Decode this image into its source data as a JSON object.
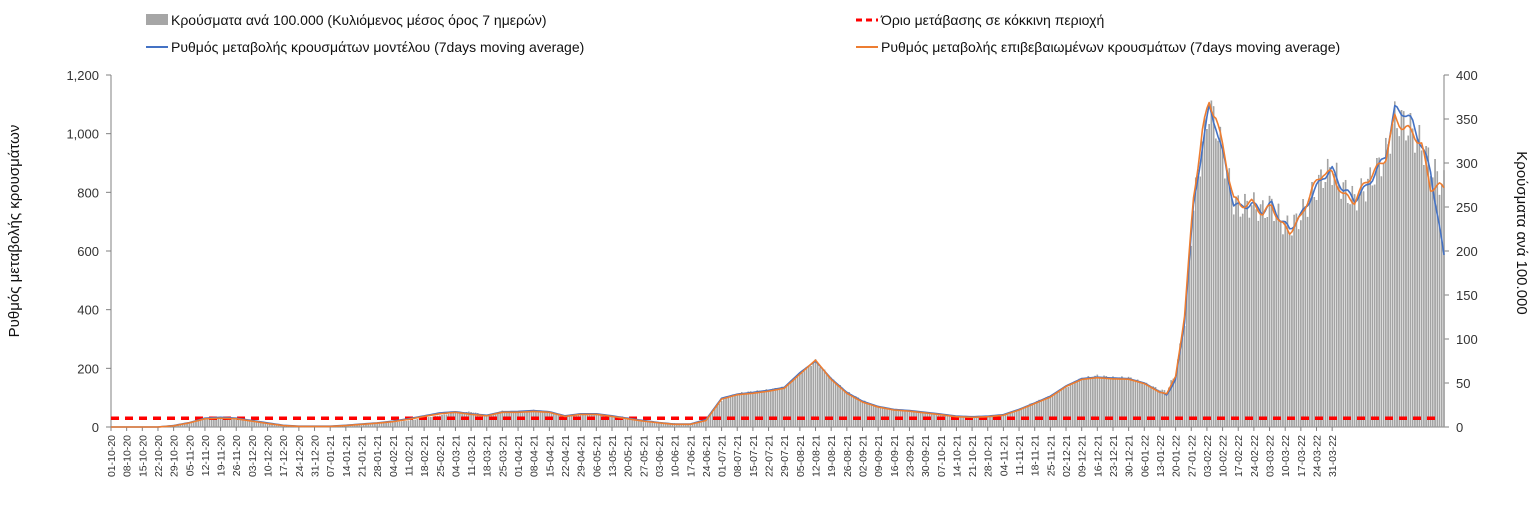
{
  "chart_data": {
    "type": "bar+line",
    "legend": {
      "bars": "Κρούσματα ανά 100.000 (Κυλιόμενος μέσος όρος 7 ημερών)",
      "threshold": "Όριο μετάβασης σε κόκκινη περιοχή",
      "model": "Ρυθμός μεταβολής κρουσμάτων μοντέλου (7days moving average)",
      "confirmed": "Ρυθμός μεταβολής επιβεβαιωμένων κρουσμάτων (7days moving average)"
    },
    "ylabel_left": "Ρυθμός μεταβολής κρουσμάτων",
    "ylabel_right": "Κρούσματα ανά 100.000",
    "ylim_left": [
      0,
      1200
    ],
    "ylim_right": [
      0,
      400
    ],
    "yticks_left": [
      "0",
      "200",
      "400",
      "600",
      "800",
      "1,000",
      "1,200"
    ],
    "yticks_right": [
      "0",
      "50",
      "100",
      "150",
      "200",
      "250",
      "300",
      "350",
      "400"
    ],
    "x_ticks": [
      "01-10-20",
      "08-10-20",
      "15-10-20",
      "22-10-20",
      "29-10-20",
      "05-11-20",
      "12-11-20",
      "19-11-20",
      "26-11-20",
      "03-12-20",
      "10-12-20",
      "17-12-20",
      "24-12-20",
      "31-12-20",
      "07-01-21",
      "14-01-21",
      "21-01-21",
      "28-01-21",
      "04-02-21",
      "11-02-21",
      "18-02-21",
      "25-02-21",
      "04-03-21",
      "11-03-21",
      "18-03-21",
      "25-03-21",
      "01-04-21",
      "08-04-21",
      "15-04-21",
      "22-04-21",
      "29-04-21",
      "06-05-21",
      "13-05-21",
      "20-05-21",
      "27-05-21",
      "03-06-21",
      "10-06-21",
      "17-06-21",
      "24-06-21",
      "01-07-21",
      "08-07-21",
      "15-07-21",
      "22-07-21",
      "29-07-21",
      "05-08-21",
      "12-08-21",
      "19-08-21",
      "26-08-21",
      "02-09-21",
      "09-09-21",
      "16-09-21",
      "23-09-21",
      "30-09-21",
      "07-10-21",
      "14-10-21",
      "21-10-21",
      "28-10-21",
      "04-11-21",
      "11-11-21",
      "18-11-21",
      "25-11-21",
      "02-12-21",
      "09-12-21",
      "16-12-21",
      "23-12-21",
      "30-12-21",
      "06-01-22",
      "13-01-22",
      "20-01-22",
      "27-01-22",
      "03-02-22",
      "10-02-22",
      "17-02-22",
      "24-02-22",
      "03-03-22",
      "10-03-22",
      "17-03-22",
      "24-03-22",
      "31-03-22"
    ],
    "threshold_value_left": 30,
    "series": [
      {
        "name": "Κρούσματα ανά 100.000 (Κυλιόμενος μέσος όρος 7 ημερών)",
        "axis": "right",
        "color": "#a6a6a6",
        "keypoints": [
          [
            0,
            0
          ],
          [
            21,
            0
          ],
          [
            28,
            2
          ],
          [
            35,
            5
          ],
          [
            42,
            10
          ],
          [
            49,
            11
          ],
          [
            56,
            10
          ],
          [
            63,
            8
          ],
          [
            70,
            5
          ],
          [
            77,
            2
          ],
          [
            84,
            1
          ],
          [
            91,
            1
          ],
          [
            98,
            1
          ],
          [
            105,
            2
          ],
          [
            112,
            3
          ],
          [
            119,
            4
          ],
          [
            126,
            5
          ],
          [
            133,
            7
          ],
          [
            140,
            10
          ],
          [
            147,
            13
          ],
          [
            154,
            16
          ],
          [
            161,
            17
          ],
          [
            168,
            13
          ],
          [
            175,
            18
          ],
          [
            182,
            17
          ],
          [
            189,
            19
          ],
          [
            196,
            17
          ],
          [
            203,
            12
          ],
          [
            210,
            15
          ],
          [
            217,
            14
          ],
          [
            224,
            12
          ],
          [
            231,
            10
          ],
          [
            238,
            7
          ],
          [
            245,
            5
          ],
          [
            252,
            4
          ],
          [
            259,
            3
          ],
          [
            266,
            8
          ],
          [
            273,
            30
          ],
          [
            280,
            38
          ],
          [
            287,
            40
          ],
          [
            294,
            42
          ],
          [
            301,
            45
          ],
          [
            308,
            60
          ],
          [
            315,
            75
          ],
          [
            322,
            55
          ],
          [
            329,
            40
          ],
          [
            336,
            30
          ],
          [
            343,
            23
          ],
          [
            350,
            20
          ],
          [
            357,
            18
          ],
          [
            364,
            16
          ],
          [
            371,
            14
          ],
          [
            378,
            12
          ],
          [
            385,
            11
          ],
          [
            392,
            12
          ],
          [
            399,
            14
          ],
          [
            406,
            20
          ],
          [
            413,
            28
          ],
          [
            420,
            35
          ],
          [
            427,
            45
          ],
          [
            434,
            55
          ],
          [
            441,
            58
          ],
          [
            448,
            56
          ],
          [
            455,
            56
          ],
          [
            462,
            50
          ],
          [
            469,
            42
          ],
          [
            472,
            40
          ],
          [
            476,
            60
          ],
          [
            480,
            120
          ],
          [
            484,
            250
          ],
          [
            488,
            320
          ],
          [
            491,
            362
          ],
          [
            494,
            345
          ],
          [
            498,
            300
          ],
          [
            502,
            255
          ],
          [
            505,
            250
          ],
          [
            510,
            253
          ],
          [
            515,
            245
          ],
          [
            519,
            252
          ],
          [
            523,
            235
          ],
          [
            527,
            225
          ],
          [
            532,
            240
          ],
          [
            537,
            263
          ],
          [
            542,
            285
          ],
          [
            546,
            292
          ],
          [
            551,
            270
          ],
          [
            556,
            258
          ],
          [
            561,
            272
          ],
          [
            566,
            292
          ],
          [
            570,
            310
          ],
          [
            574,
            350
          ],
          [
            578,
            345
          ],
          [
            582,
            335
          ],
          [
            586,
            320
          ],
          [
            590,
            298
          ],
          [
            594,
            280
          ],
          [
            596,
            275
          ]
        ]
      },
      {
        "name": "Ρυθμός μεταβολής κρουσμάτων μοντέλου (7days moving average)",
        "axis": "left",
        "color": "#4472c4",
        "keypoints": [
          [
            0,
            0
          ],
          [
            21,
            0
          ],
          [
            28,
            5
          ],
          [
            35,
            15
          ],
          [
            42,
            30
          ],
          [
            49,
            33
          ],
          [
            56,
            30
          ],
          [
            63,
            22
          ],
          [
            70,
            14
          ],
          [
            77,
            6
          ],
          [
            84,
            3
          ],
          [
            91,
            3
          ],
          [
            98,
            3
          ],
          [
            105,
            6
          ],
          [
            112,
            10
          ],
          [
            119,
            14
          ],
          [
            126,
            20
          ],
          [
            133,
            28
          ],
          [
            140,
            38
          ],
          [
            147,
            48
          ],
          [
            154,
            52
          ],
          [
            161,
            45
          ],
          [
            168,
            40
          ],
          [
            175,
            52
          ],
          [
            182,
            53
          ],
          [
            189,
            56
          ],
          [
            196,
            52
          ],
          [
            203,
            38
          ],
          [
            210,
            45
          ],
          [
            217,
            45
          ],
          [
            224,
            38
          ],
          [
            231,
            30
          ],
          [
            238,
            22
          ],
          [
            245,
            15
          ],
          [
            252,
            10
          ],
          [
            259,
            10
          ],
          [
            266,
            25
          ],
          [
            273,
            98
          ],
          [
            280,
            112
          ],
          [
            287,
            118
          ],
          [
            294,
            125
          ],
          [
            301,
            135
          ],
          [
            308,
            185
          ],
          [
            315,
            225
          ],
          [
            322,
            165
          ],
          [
            329,
            118
          ],
          [
            336,
            88
          ],
          [
            343,
            70
          ],
          [
            350,
            60
          ],
          [
            357,
            56
          ],
          [
            364,
            50
          ],
          [
            371,
            44
          ],
          [
            378,
            37
          ],
          [
            385,
            35
          ],
          [
            392,
            37
          ],
          [
            399,
            42
          ],
          [
            406,
            60
          ],
          [
            413,
            82
          ],
          [
            420,
            105
          ],
          [
            427,
            140
          ],
          [
            434,
            165
          ],
          [
            441,
            170
          ],
          [
            448,
            167
          ],
          [
            455,
            165
          ],
          [
            462,
            150
          ],
          [
            469,
            120
          ],
          [
            472,
            110
          ],
          [
            476,
            160
          ],
          [
            480,
            360
          ],
          [
            484,
            750
          ],
          [
            488,
            960
          ],
          [
            491,
            1085
          ],
          [
            494,
            1030
          ],
          [
            498,
            900
          ],
          [
            502,
            760
          ],
          [
            505,
            750
          ],
          [
            510,
            760
          ],
          [
            515,
            735
          ],
          [
            519,
            760
          ],
          [
            523,
            705
          ],
          [
            527,
            675
          ],
          [
            532,
            720
          ],
          [
            537,
            790
          ],
          [
            542,
            855
          ],
          [
            546,
            875
          ],
          [
            551,
            810
          ],
          [
            556,
            775
          ],
          [
            561,
            815
          ],
          [
            566,
            875
          ],
          [
            570,
            930
          ],
          [
            574,
            1080
          ],
          [
            578,
            1075
          ],
          [
            582,
            1035
          ],
          [
            586,
            960
          ],
          [
            590,
            870
          ],
          [
            594,
            680
          ],
          [
            596,
            580
          ]
        ]
      },
      {
        "name": "Ρυθμός μεταβολής επιβεβαιωμένων κρουσμάτων (7days moving average)",
        "axis": "left",
        "color": "#ed7d31",
        "keypoints": [
          [
            0,
            0
          ],
          [
            21,
            0
          ],
          [
            28,
            4
          ],
          [
            35,
            14
          ],
          [
            42,
            28
          ],
          [
            49,
            30
          ],
          [
            56,
            28
          ],
          [
            63,
            20
          ],
          [
            70,
            12
          ],
          [
            77,
            5
          ],
          [
            84,
            2
          ],
          [
            91,
            2
          ],
          [
            98,
            2
          ],
          [
            105,
            5
          ],
          [
            112,
            9
          ],
          [
            119,
            13
          ],
          [
            126,
            18
          ],
          [
            133,
            26
          ],
          [
            140,
            36
          ],
          [
            147,
            45
          ],
          [
            154,
            50
          ],
          [
            161,
            43
          ],
          [
            168,
            38
          ],
          [
            175,
            50
          ],
          [
            182,
            50
          ],
          [
            189,
            53
          ],
          [
            196,
            50
          ],
          [
            203,
            36
          ],
          [
            210,
            43
          ],
          [
            217,
            43
          ],
          [
            224,
            36
          ],
          [
            231,
            28
          ],
          [
            238,
            20
          ],
          [
            245,
            14
          ],
          [
            252,
            9
          ],
          [
            259,
            9
          ],
          [
            266,
            22
          ],
          [
            273,
            95
          ],
          [
            280,
            110
          ],
          [
            287,
            115
          ],
          [
            294,
            122
          ],
          [
            301,
            132
          ],
          [
            308,
            180
          ],
          [
            315,
            228
          ],
          [
            322,
            162
          ],
          [
            329,
            115
          ],
          [
            336,
            85
          ],
          [
            343,
            68
          ],
          [
            350,
            58
          ],
          [
            357,
            54
          ],
          [
            364,
            48
          ],
          [
            371,
            42
          ],
          [
            378,
            35
          ],
          [
            385,
            33
          ],
          [
            392,
            35
          ],
          [
            399,
            40
          ],
          [
            406,
            58
          ],
          [
            413,
            80
          ],
          [
            420,
            102
          ],
          [
            427,
            138
          ],
          [
            434,
            162
          ],
          [
            441,
            168
          ],
          [
            448,
            164
          ],
          [
            455,
            163
          ],
          [
            462,
            148
          ],
          [
            469,
            118
          ],
          [
            472,
            115
          ],
          [
            476,
            170
          ],
          [
            480,
            380
          ],
          [
            484,
            780
          ],
          [
            488,
            1010
          ],
          [
            491,
            1105
          ],
          [
            494,
            1060
          ],
          [
            498,
            920
          ],
          [
            502,
            780
          ],
          [
            505,
            755
          ],
          [
            510,
            765
          ],
          [
            515,
            728
          ],
          [
            519,
            755
          ],
          [
            523,
            695
          ],
          [
            527,
            665
          ],
          [
            532,
            715
          ],
          [
            537,
            810
          ],
          [
            542,
            868
          ],
          [
            546,
            862
          ],
          [
            551,
            790
          ],
          [
            556,
            770
          ],
          [
            561,
            835
          ],
          [
            566,
            880
          ],
          [
            570,
            920
          ],
          [
            574,
            1055
          ],
          [
            578,
            1020
          ],
          [
            582,
            1005
          ],
          [
            586,
            960
          ],
          [
            590,
            815
          ],
          [
            594,
            820
          ],
          [
            596,
            818
          ]
        ]
      }
    ]
  }
}
